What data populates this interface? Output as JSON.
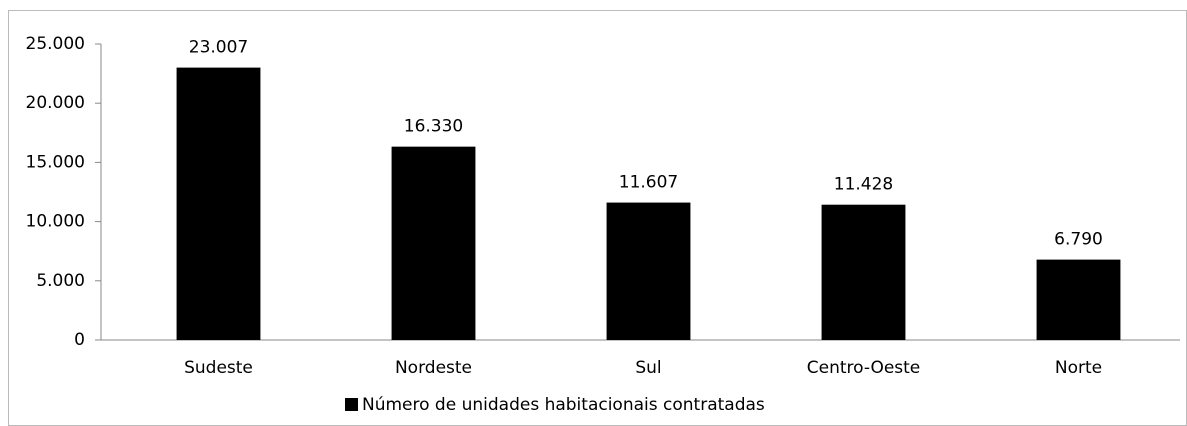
{
  "chart_data": {
    "type": "bar",
    "categories": [
      "Sudeste",
      "Nordeste",
      "Sul",
      "Centro-Oeste",
      "Norte"
    ],
    "series": [
      {
        "name": "Número de unidades habitacionais contratadas",
        "color": "#000000",
        "values": [
          23007,
          16330,
          11607,
          11428,
          6790
        ],
        "value_labels": [
          "23.007",
          "16.330",
          "11.607",
          "11.428",
          "6.790"
        ]
      }
    ],
    "ylim": [
      0,
      25000
    ],
    "yticks": [
      0,
      {
        "value": 5000,
        "label": "5.000"
      },
      {
        "value": 10000,
        "label": "10.000"
      },
      {
        "value": 15000,
        "label": "15.000"
      },
      {
        "value": 20000,
        "label": "20.000"
      },
      {
        "value": 25000,
        "label": "25.000"
      }
    ],
    "grid": false,
    "legend": "bottom"
  }
}
